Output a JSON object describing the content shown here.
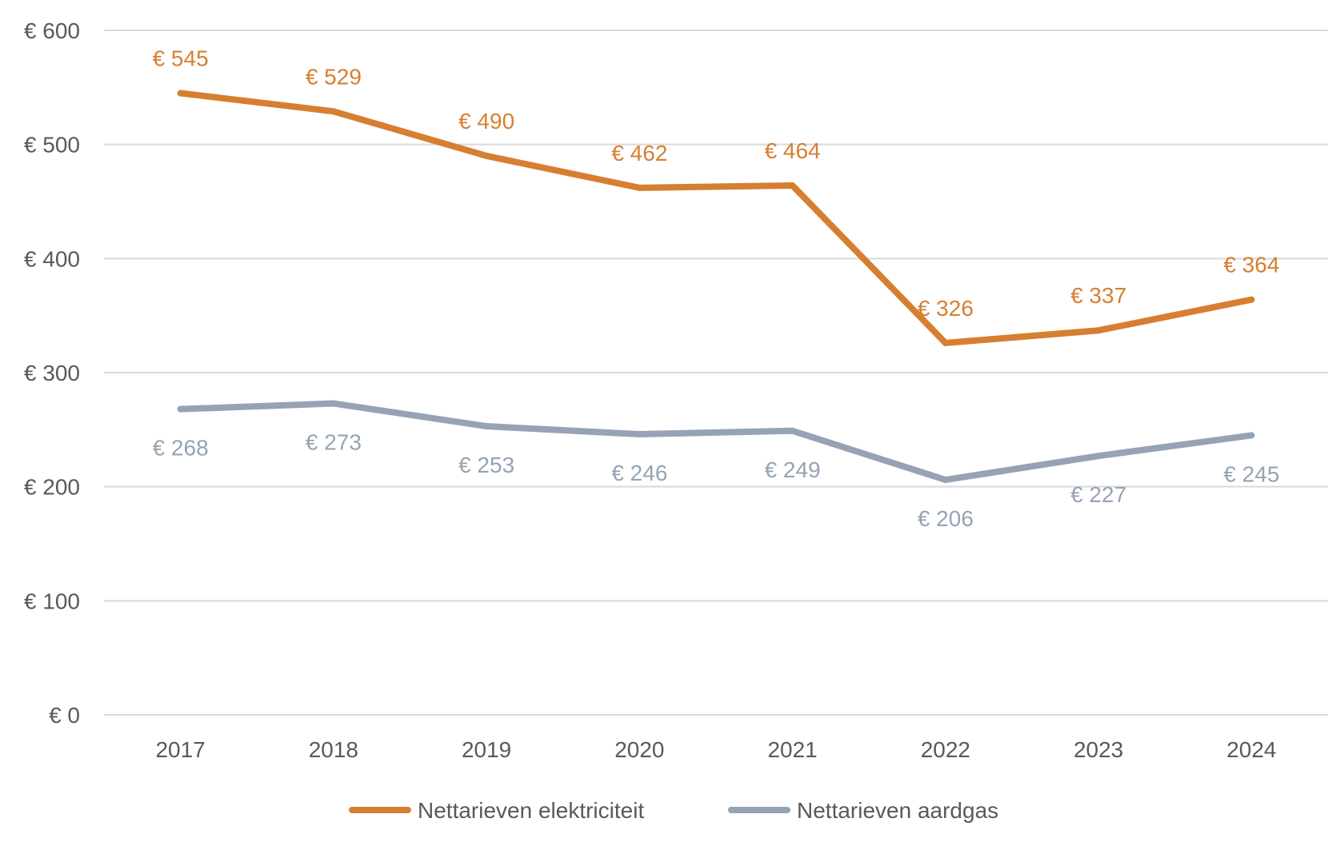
{
  "chart_data": {
    "type": "line",
    "categories": [
      "2017",
      "2018",
      "2019",
      "2020",
      "2021",
      "2022",
      "2023",
      "2024"
    ],
    "series": [
      {
        "name": "Nettarieven elektriciteit",
        "color": "#D67F31",
        "values": [
          545,
          529,
          490,
          462,
          464,
          326,
          337,
          364
        ],
        "labels": [
          "€ 545",
          "€ 529",
          "€ 490",
          "€ 462",
          "€ 464",
          "€ 326",
          "€ 337",
          "€ 364"
        ],
        "label_position": "above"
      },
      {
        "name": "Nettarieven aardgas",
        "color": "#95A3B4",
        "values": [
          268,
          273,
          253,
          246,
          249,
          206,
          227,
          245
        ],
        "labels": [
          "€ 268",
          "€ 273",
          "€ 253",
          "€ 246",
          "€ 249",
          "€ 206",
          "€ 227",
          "€ 245"
        ],
        "label_position": "below"
      }
    ],
    "y_ticks": [
      0,
      100,
      200,
      300,
      400,
      500,
      600
    ],
    "y_tick_labels": [
      "€ 0",
      "€ 100",
      "€ 200",
      "€ 300",
      "€ 400",
      "€ 500",
      "€ 600"
    ],
    "ylim": [
      0,
      600
    ],
    "grid": true,
    "legend": "bottom",
    "gridline_color": "#D9D9D9"
  }
}
